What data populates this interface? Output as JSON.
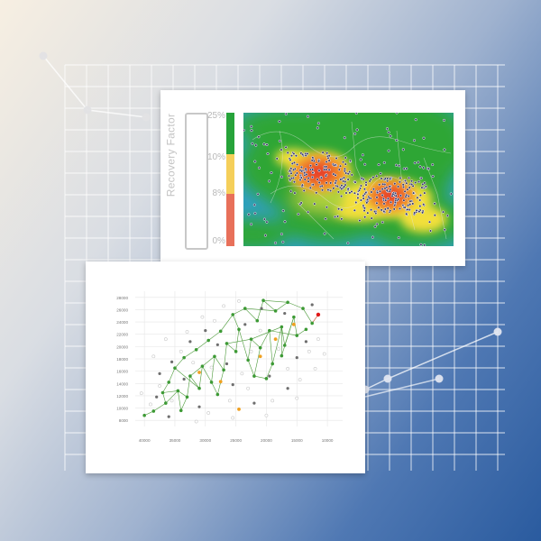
{
  "colors": {
    "green": "#27a33a",
    "yellow": "#f5cf5a",
    "red": "#e8705a",
    "scatter_green": "#3d9a35",
    "scatter_orange": "#f0a020",
    "scatter_red": "#e01818"
  },
  "heatmap": {
    "legend_title": "Recovery Factor",
    "legend_ticks": [
      "25%",
      "10%",
      "8%",
      "0%"
    ]
  },
  "chart_data": [
    {
      "type": "heatmap",
      "title": "",
      "legend_title": "Recovery Factor",
      "scale": [
        {
          "label": "25%",
          "color": "#27a33a"
        },
        {
          "label": "10%",
          "color": "#f5cf5a"
        },
        {
          "label": "8%",
          "color": "#e8705a"
        },
        {
          "label": "0%",
          "color": "#e8705a"
        }
      ],
      "hotspots": [
        {
          "name": "west",
          "x": 0.36,
          "y": 0.45,
          "intensity": 1.0
        },
        {
          "name": "east",
          "x": 0.7,
          "y": 0.62,
          "intensity": 0.9
        }
      ]
    },
    {
      "type": "scatter",
      "title": "",
      "xlabel": "",
      "ylabel": "",
      "x_ticks": [
        40000,
        35000,
        30000,
        25000,
        20000,
        15000,
        10000
      ],
      "y_ticks": [
        28000,
        26000,
        24000,
        22000,
        20000,
        18000,
        16000,
        14000,
        12000,
        10000,
        8000
      ],
      "xlim": [
        41500,
        7500
      ],
      "ylim": [
        7000,
        29000
      ],
      "grid": true,
      "series": [
        {
          "color": "green",
          "points": [
            [
              40000,
              8800
            ],
            [
              38500,
              9500
            ],
            [
              37000,
              12500
            ],
            [
              36500,
              10800
            ],
            [
              36000,
              14200
            ],
            [
              35000,
              16500
            ],
            [
              34500,
              12800
            ],
            [
              33500,
              18200
            ],
            [
              33000,
              11800
            ],
            [
              32500,
              15200
            ],
            [
              31500,
              19500
            ],
            [
              31000,
              13200
            ],
            [
              30500,
              16800
            ],
            [
              29500,
              21000
            ],
            [
              29000,
              14200
            ],
            [
              28500,
              18400
            ],
            [
              27500,
              22500
            ],
            [
              27000,
              16200
            ],
            [
              26500,
              20500
            ],
            [
              25500,
              25200
            ],
            [
              25000,
              19200
            ],
            [
              24500,
              22800
            ],
            [
              23500,
              26200
            ],
            [
              23000,
              17800
            ],
            [
              22500,
              21200
            ],
            [
              21500,
              24200
            ],
            [
              21000,
              19800
            ],
            [
              20500,
              27500
            ],
            [
              19500,
              22600
            ],
            [
              19000,
              17200
            ],
            [
              18500,
              25800
            ],
            [
              17500,
              23200
            ],
            [
              17000,
              20200
            ],
            [
              16500,
              27200
            ],
            [
              15500,
              24800
            ],
            [
              15000,
              21800
            ],
            [
              14000,
              26200
            ],
            [
              13500,
              22800
            ],
            [
              12500,
              23800
            ],
            [
              34000,
              9600
            ],
            [
              28000,
              12200
            ],
            [
              22000,
              15200
            ],
            [
              17500,
              18500
            ],
            [
              20000,
              14800
            ]
          ],
          "edges": [
            [
              0,
              1
            ],
            [
              1,
              3
            ],
            [
              3,
              2
            ],
            [
              2,
              4
            ],
            [
              4,
              5
            ],
            [
              5,
              7
            ],
            [
              7,
              10
            ],
            [
              10,
              13
            ],
            [
              13,
              16
            ],
            [
              16,
              19
            ],
            [
              19,
              22
            ],
            [
              22,
              25
            ],
            [
              25,
              27
            ],
            [
              27,
              30
            ],
            [
              30,
              33
            ],
            [
              33,
              36
            ],
            [
              36,
              38
            ],
            [
              3,
              6
            ],
            [
              6,
              8
            ],
            [
              8,
              9
            ],
            [
              9,
              11
            ],
            [
              11,
              12
            ],
            [
              12,
              14
            ],
            [
              14,
              15
            ],
            [
              15,
              17
            ],
            [
              17,
              18
            ],
            [
              18,
              20
            ],
            [
              20,
              21
            ],
            [
              21,
              23
            ],
            [
              23,
              24
            ],
            [
              24,
              26
            ],
            [
              26,
              28
            ],
            [
              28,
              29
            ],
            [
              29,
              31
            ],
            [
              31,
              32
            ],
            [
              32,
              34
            ],
            [
              34,
              35
            ],
            [
              35,
              37
            ],
            [
              6,
              39
            ],
            [
              39,
              8
            ],
            [
              14,
              40
            ],
            [
              40,
              17
            ],
            [
              23,
              41
            ],
            [
              41,
              26
            ],
            [
              31,
              42
            ],
            [
              42,
              34
            ],
            [
              43,
              29
            ],
            [
              41,
              43
            ],
            [
              9,
              15
            ],
            [
              18,
              24
            ],
            [
              24,
              31
            ],
            [
              28,
              35
            ],
            [
              5,
              11
            ],
            [
              2,
              6
            ],
            [
              19,
              21
            ],
            [
              27,
              33
            ],
            [
              22,
              30
            ]
          ]
        },
        {
          "color": "orange",
          "points": [
            [
              27500,
              14300
            ],
            [
              24500,
              9800
            ],
            [
              21000,
              18400
            ],
            [
              18500,
              21200
            ],
            [
              15500,
              23600
            ],
            [
              31000,
              15800
            ]
          ]
        },
        {
          "color": "red",
          "points": [
            [
              11500,
              25200
            ]
          ],
          "edges_to_green": [
            38
          ]
        },
        {
          "color": "gray",
          "points": [
            [
              38000,
              11800
            ],
            [
              36000,
              8600
            ],
            [
              33500,
              14700
            ],
            [
              31000,
              10200
            ],
            [
              28000,
              20300
            ],
            [
              25500,
              13800
            ],
            [
              23500,
              23600
            ],
            [
              22000,
              10800
            ],
            [
              19500,
              15200
            ],
            [
              17000,
              25400
            ],
            [
              15000,
              18200
            ],
            [
              13500,
              20800
            ],
            [
              26500,
              17200
            ],
            [
              30000,
              22600
            ],
            [
              35500,
              17500
            ],
            [
              12500,
              26800
            ],
            [
              20800,
              26200
            ],
            [
              32500,
              20800
            ],
            [
              37500,
              15600
            ],
            [
              16500,
              13200
            ]
          ]
        },
        {
          "color": "hollow",
          "points": [
            [
              39000,
              10600
            ],
            [
              37500,
              13600
            ],
            [
              35500,
              11200
            ],
            [
              34000,
              19200
            ],
            [
              32000,
              17400
            ],
            [
              29500,
              9200
            ],
            [
              28500,
              24200
            ],
            [
              26000,
              11200
            ],
            [
              24000,
              15600
            ],
            [
              22500,
              19200
            ],
            [
              21000,
              22600
            ],
            [
              19000,
              11200
            ],
            [
              18000,
              19600
            ],
            [
              16500,
              16400
            ],
            [
              14500,
              14600
            ],
            [
              13000,
              19200
            ],
            [
              11500,
              21200
            ],
            [
              27000,
              26600
            ],
            [
              24500,
              27400
            ],
            [
              30500,
              24800
            ],
            [
              33000,
              22400
            ],
            [
              36500,
              21200
            ],
            [
              38500,
              18400
            ],
            [
              40500,
              12400
            ],
            [
              25500,
              8400
            ],
            [
              20000,
              8800
            ],
            [
              15000,
              11600
            ],
            [
              12000,
              16400
            ],
            [
              10500,
              18800
            ],
            [
              23000,
              13200
            ],
            [
              31500,
              7800
            ],
            [
              29000,
              16600
            ]
          ]
        }
      ]
    }
  ]
}
